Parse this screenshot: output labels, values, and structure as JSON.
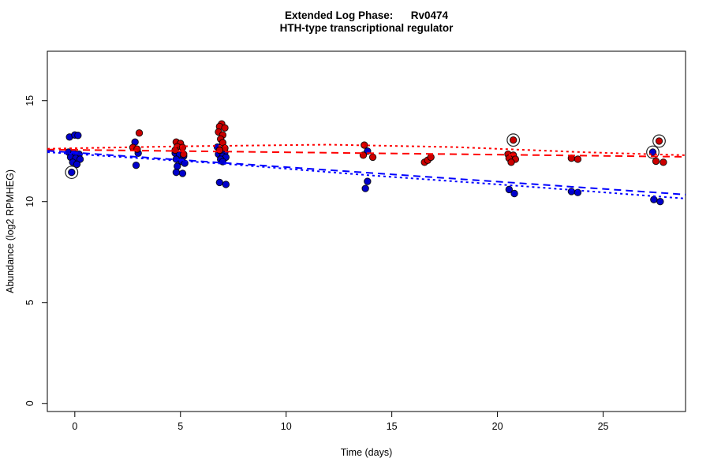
{
  "title": {
    "line1": "Extended Log Phase:      Rv0474",
    "line2": "HTH-type transcriptional regulator"
  },
  "colors": {
    "blue_point": "#0000CC",
    "red_point": "#CC0000",
    "blue_line": "#0000FF",
    "red_line": "#FF0000",
    "point_outline": "#000000",
    "outlier_ring": "#222222",
    "axis": "#000000"
  },
  "chart_data": {
    "type": "scatter",
    "xlabel": "Time  (days)",
    "ylabel": "Abundance  (log2 RPMHEG)",
    "xlim": [
      -1.3,
      28.9
    ],
    "ylim": [
      -0.4,
      17.45
    ],
    "xticks": [
      0,
      5,
      10,
      15,
      20,
      25
    ],
    "yticks": [
      0,
      5,
      10,
      15
    ],
    "grid": false,
    "legend": "none",
    "series": [
      {
        "name": "blue-replicates",
        "color": "#0000CC",
        "points": [
          [
            -0.25,
            13.2
          ],
          [
            0.0,
            13.3
          ],
          [
            0.15,
            13.28
          ],
          [
            -0.3,
            12.45
          ],
          [
            -0.05,
            12.4
          ],
          [
            0.2,
            12.35
          ],
          [
            -0.2,
            12.2
          ],
          [
            0.05,
            12.15
          ],
          [
            0.25,
            12.1
          ],
          [
            -0.1,
            11.95
          ],
          [
            0.1,
            11.85
          ],
          [
            -0.15,
            11.45
          ],
          [
            2.85,
            12.95
          ],
          [
            3.0,
            12.4
          ],
          [
            2.9,
            11.8
          ],
          [
            4.75,
            12.4
          ],
          [
            4.95,
            12.35
          ],
          [
            5.15,
            12.25
          ],
          [
            4.8,
            12.1
          ],
          [
            5.05,
            12.0
          ],
          [
            5.2,
            11.9
          ],
          [
            4.85,
            11.75
          ],
          [
            4.8,
            11.45
          ],
          [
            5.1,
            11.4
          ],
          [
            6.75,
            12.7
          ],
          [
            6.95,
            12.55
          ],
          [
            7.1,
            12.45
          ],
          [
            6.8,
            12.35
          ],
          [
            7.0,
            12.25
          ],
          [
            7.15,
            12.2
          ],
          [
            6.9,
            12.1
          ],
          [
            7.0,
            11.98
          ],
          [
            6.85,
            10.95
          ],
          [
            7.15,
            10.85
          ],
          [
            13.85,
            12.5
          ],
          [
            13.85,
            11.0
          ],
          [
            13.75,
            10.65
          ],
          [
            20.6,
            12.25
          ],
          [
            20.55,
            10.6
          ],
          [
            20.8,
            10.4
          ],
          [
            23.5,
            10.5
          ],
          [
            23.8,
            10.45
          ],
          [
            27.35,
            12.45
          ],
          [
            27.4,
            10.1
          ],
          [
            27.7,
            10.0
          ]
        ]
      },
      {
        "name": "red-replicates",
        "color": "#CC0000",
        "points": [
          [
            3.05,
            13.4
          ],
          [
            2.75,
            12.68
          ],
          [
            2.95,
            12.6
          ],
          [
            4.8,
            12.95
          ],
          [
            5.0,
            12.88
          ],
          [
            4.85,
            12.72
          ],
          [
            5.1,
            12.68
          ],
          [
            4.75,
            12.55
          ],
          [
            5.15,
            12.35
          ],
          [
            6.95,
            13.85
          ],
          [
            6.85,
            13.72
          ],
          [
            7.1,
            13.65
          ],
          [
            6.8,
            13.45
          ],
          [
            7.0,
            13.3
          ],
          [
            6.9,
            13.1
          ],
          [
            7.0,
            12.92
          ],
          [
            7.1,
            12.65
          ],
          [
            6.85,
            12.55
          ],
          [
            13.7,
            12.8
          ],
          [
            13.65,
            12.3
          ],
          [
            14.1,
            12.2
          ],
          [
            16.55,
            11.95
          ],
          [
            16.7,
            12.05
          ],
          [
            16.85,
            12.2
          ],
          [
            20.75,
            13.05
          ],
          [
            20.5,
            12.35
          ],
          [
            20.75,
            12.3
          ],
          [
            20.55,
            12.15
          ],
          [
            20.85,
            12.1
          ],
          [
            20.65,
            11.95
          ],
          [
            23.5,
            12.15
          ],
          [
            23.8,
            12.1
          ],
          [
            27.65,
            13.0
          ],
          [
            27.5,
            12.0
          ],
          [
            27.85,
            11.95
          ]
        ]
      }
    ],
    "outliers_circled": [
      {
        "x": -0.15,
        "y": 11.45,
        "series": "blue-replicates"
      },
      {
        "x": 20.75,
        "y": 13.05,
        "series": "red-replicates"
      },
      {
        "x": 27.35,
        "y": 12.45,
        "series": "blue-replicates"
      },
      {
        "x": 27.65,
        "y": 13.0,
        "series": "red-replicates"
      }
    ],
    "trend_lines": [
      {
        "name": "red-fit-dotted",
        "color": "#FF0000",
        "style": "dotted",
        "points": [
          [
            -1.3,
            12.62
          ],
          [
            5,
            12.74
          ],
          [
            12,
            12.82
          ],
          [
            18,
            12.7
          ],
          [
            24,
            12.45
          ],
          [
            28.9,
            12.3
          ]
        ]
      },
      {
        "name": "red-fit-dashed",
        "color": "#FF0000",
        "style": "dashed",
        "points": [
          [
            -1.3,
            12.58
          ],
          [
            28.9,
            12.22
          ]
        ]
      },
      {
        "name": "blue-fit-dashed",
        "color": "#0000FF",
        "style": "dashed",
        "points": [
          [
            -1.3,
            12.52
          ],
          [
            28.9,
            10.35
          ]
        ]
      },
      {
        "name": "blue-fit-dotted",
        "color": "#0000FF",
        "style": "dotted",
        "points": [
          [
            -1.3,
            12.45
          ],
          [
            7,
            11.88
          ],
          [
            14,
            11.3
          ],
          [
            21,
            10.78
          ],
          [
            28.9,
            10.15
          ]
        ]
      }
    ]
  }
}
